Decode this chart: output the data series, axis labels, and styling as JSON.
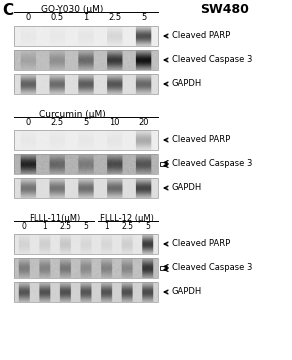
{
  "background_color": "#f0f0f0",
  "panel_label": "C",
  "title_right": "SW480",
  "section1_label": "GO-Y030 (μM)",
  "section1_concs": [
    "0",
    "0.5",
    "1",
    "2.5",
    "5"
  ],
  "section2_label": "Curcumin (μM)",
  "section2_concs": [
    "0",
    "2.5",
    "5",
    "10",
    "20"
  ],
  "section3_label_left": "FLLL-11(μM)",
  "section3_label_right": "FLLL-12 (μM)",
  "section3_concs": [
    "0",
    "1",
    "2.5",
    "5",
    "1",
    "2.5",
    "5"
  ],
  "label_cleaved_parp": "Cleaved PARP",
  "label_cleaved_casp3": "Cleaved Caspase 3",
  "label_gapdh": "GAPDH"
}
